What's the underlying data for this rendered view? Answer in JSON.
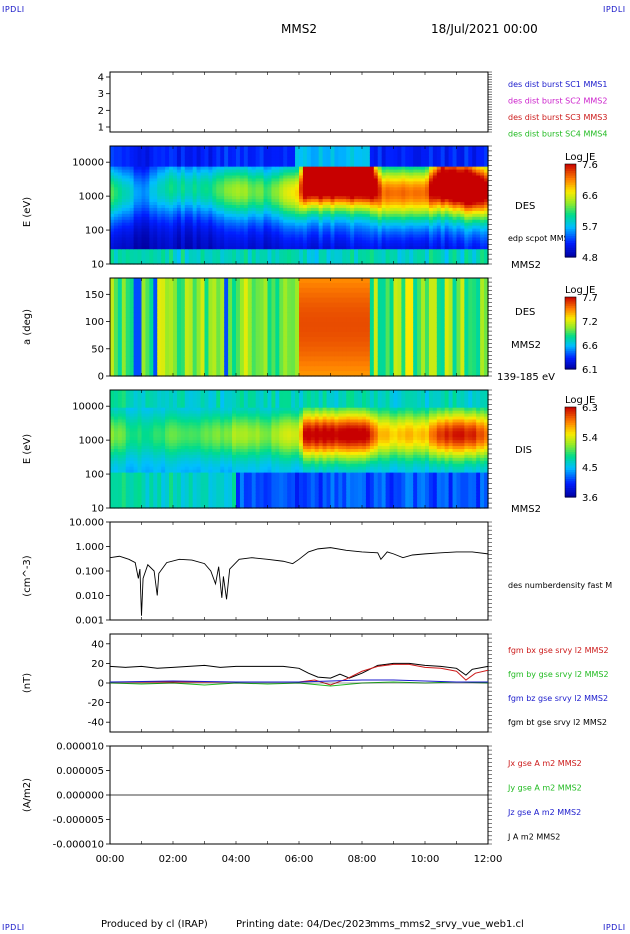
{
  "header": {
    "title": "MMS2",
    "date": "18/Jul/2021 00:00",
    "corner_left_top": "IPDLI",
    "corner_right_top": "IPDLI",
    "corner_left_bottom": "IPDLI",
    "corner_right_bottom": "IPDLI"
  },
  "footer": {
    "produced": "Produced by cl (IRAP)",
    "printing": "Printing date: 04/Dec/2023",
    "file": "mms_mms2_srvy_vue_web1.cl"
  },
  "chart_data": {
    "type": "stacked-timeseries",
    "x_ticks": [
      "00:00",
      "02:00",
      "04:00",
      "06:00",
      "08:00",
      "10:00",
      "12:00"
    ],
    "x_range_hours": [
      0,
      12
    ],
    "panels": [
      {
        "id": "burst",
        "type": "line",
        "y_ticks": [
          "1",
          "2",
          "3",
          "4"
        ],
        "ylim": [
          0.7,
          4.3
        ],
        "legend": [
          {
            "label": "des dist burst SC1 MMS1",
            "color": "#1a1acc"
          },
          {
            "label": "des dist burst SC2 MMS2",
            "color": "#cc22cc"
          },
          {
            "label": "des dist burst SC3 MMS3",
            "color": "#cc1a1a"
          },
          {
            "label": "des dist burst SC4 MMS4",
            "color": "#22bb22"
          }
        ]
      },
      {
        "id": "des-energy",
        "type": "heatmap",
        "ylabel": "E (eV)",
        "y_ticks": [
          "10",
          "100",
          "1000",
          "10000"
        ],
        "ylim_log": [
          10,
          30000
        ],
        "side_labels": [
          "DES",
          "edp scpot MMS2",
          "MMS2"
        ],
        "colorbar": {
          "title": "Log JE",
          "ticks": [
            "7.6",
            "6.6",
            "5.7",
            "4.8"
          ],
          "range": [
            4.8,
            7.6
          ]
        }
      },
      {
        "id": "des-pitch",
        "type": "heatmap",
        "ylabel": "a (deg)",
        "y_ticks": [
          "0",
          "50",
          "100",
          "150"
        ],
        "ylim": [
          0,
          180
        ],
        "side_labels": [
          "DES",
          "MMS2",
          "139-185 eV"
        ],
        "colorbar": {
          "title": "Log JE",
          "ticks": [
            "7.7",
            "7.2",
            "6.6",
            "6.1"
          ],
          "range": [
            6.1,
            7.7
          ]
        }
      },
      {
        "id": "dis-energy",
        "type": "heatmap",
        "ylabel": "E (eV)",
        "y_ticks": [
          "10",
          "100",
          "1000",
          "10000"
        ],
        "ylim_log": [
          10,
          30000
        ],
        "side_labels": [
          "DIS",
          "MMS2"
        ],
        "colorbar": {
          "title": "Log JE",
          "ticks": [
            "6.3",
            "5.4",
            "4.5",
            "3.6"
          ],
          "range": [
            3.6,
            6.3
          ]
        }
      },
      {
        "id": "density",
        "type": "line",
        "ylabel": "(cm^-3)",
        "y_ticks": [
          "0.001",
          "0.010",
          "0.100",
          "1.000",
          "10.000"
        ],
        "ylim_log": [
          0.001,
          10
        ],
        "legend": [
          {
            "label": "des numberdensity fast M",
            "color": "#000000"
          }
        ],
        "series_points": [
          [
            0.0,
            0.35
          ],
          [
            0.3,
            0.4
          ],
          [
            0.6,
            0.3
          ],
          [
            0.8,
            0.22
          ],
          [
            0.9,
            0.05
          ],
          [
            0.95,
            0.12
          ],
          [
            1.0,
            0.0015
          ],
          [
            1.05,
            0.05
          ],
          [
            1.2,
            0.18
          ],
          [
            1.4,
            0.1
          ],
          [
            1.5,
            0.01
          ],
          [
            1.55,
            0.08
          ],
          [
            1.8,
            0.22
          ],
          [
            2.2,
            0.3
          ],
          [
            2.6,
            0.28
          ],
          [
            3.0,
            0.2
          ],
          [
            3.2,
            0.1
          ],
          [
            3.35,
            0.03
          ],
          [
            3.45,
            0.15
          ],
          [
            3.55,
            0.008
          ],
          [
            3.6,
            0.06
          ],
          [
            3.7,
            0.007
          ],
          [
            3.8,
            0.12
          ],
          [
            4.1,
            0.3
          ],
          [
            4.5,
            0.35
          ],
          [
            5.0,
            0.3
          ],
          [
            5.5,
            0.25
          ],
          [
            5.8,
            0.2
          ],
          [
            6.0,
            0.3
          ],
          [
            6.3,
            0.6
          ],
          [
            6.6,
            0.8
          ],
          [
            7.0,
            0.9
          ],
          [
            7.5,
            0.7
          ],
          [
            8.0,
            0.6
          ],
          [
            8.5,
            0.55
          ],
          [
            8.6,
            0.3
          ],
          [
            8.8,
            0.6
          ],
          [
            9.0,
            0.5
          ],
          [
            9.3,
            0.35
          ],
          [
            9.6,
            0.45
          ],
          [
            10.0,
            0.5
          ],
          [
            10.5,
            0.55
          ],
          [
            11.0,
            0.6
          ],
          [
            11.5,
            0.6
          ],
          [
            12.0,
            0.5
          ]
        ]
      },
      {
        "id": "fgm",
        "type": "line",
        "ylabel": "(nT)",
        "y_ticks": [
          "-40",
          "-20",
          "0",
          "20",
          "40"
        ],
        "ylim": [
          -50,
          50
        ],
        "legend": [
          {
            "label": "fgm bx gse srvy l2 MMS2",
            "color": "#cc1a1a"
          },
          {
            "label": "fgm by gse srvy l2 MMS2",
            "color": "#22bb22"
          },
          {
            "label": "fgm bz gse srvy l2 MMS2",
            "color": "#1a1acc"
          },
          {
            "label": "fgm bt gse srvy l2 MMS2",
            "color": "#000000"
          }
        ],
        "series": [
          {
            "name": "bt",
            "color": "#000000",
            "points": [
              [
                0,
                17
              ],
              [
                0.5,
                16
              ],
              [
                1,
                17
              ],
              [
                1.5,
                15
              ],
              [
                2,
                16
              ],
              [
                2.5,
                17
              ],
              [
                3,
                18
              ],
              [
                3.5,
                16
              ],
              [
                4,
                17
              ],
              [
                4.5,
                17
              ],
              [
                5,
                17
              ],
              [
                5.5,
                17
              ],
              [
                6,
                15
              ],
              [
                6.3,
                10
              ],
              [
                6.6,
                6
              ],
              [
                7,
                5
              ],
              [
                7.3,
                9
              ],
              [
                7.6,
                5
              ],
              [
                8,
                10
              ],
              [
                8.5,
                18
              ],
              [
                9,
                20
              ],
              [
                9.5,
                20
              ],
              [
                10,
                18
              ],
              [
                10.5,
                17
              ],
              [
                11,
                15
              ],
              [
                11.3,
                8
              ],
              [
                11.5,
                14
              ],
              [
                12,
                17
              ]
            ]
          },
          {
            "name": "bx",
            "color": "#cc1a1a",
            "points": [
              [
                0,
                1
              ],
              [
                6,
                1
              ],
              [
                6.5,
                3
              ],
              [
                7,
                -2
              ],
              [
                7.5,
                4
              ],
              [
                8,
                12
              ],
              [
                8.5,
                17
              ],
              [
                9,
                19
              ],
              [
                9.5,
                19
              ],
              [
                10,
                16
              ],
              [
                10.5,
                15
              ],
              [
                11,
                12
              ],
              [
                11.3,
                3
              ],
              [
                11.6,
                10
              ],
              [
                12,
                13
              ]
            ]
          },
          {
            "name": "by",
            "color": "#22bb22",
            "points": [
              [
                0,
                0
              ],
              [
                1,
                -1
              ],
              [
                2,
                0
              ],
              [
                3,
                -2
              ],
              [
                4,
                0
              ],
              [
                5,
                -1
              ],
              [
                6,
                0
              ],
              [
                7,
                -3
              ],
              [
                8,
                0
              ],
              [
                9,
                1
              ],
              [
                10,
                0
              ],
              [
                11,
                1
              ],
              [
                12,
                0
              ]
            ]
          },
          {
            "name": "bz",
            "color": "#1a1acc",
            "points": [
              [
                0,
                1
              ],
              [
                2,
                2
              ],
              [
                4,
                1
              ],
              [
                6,
                1
              ],
              [
                7,
                2
              ],
              [
                8,
                3
              ],
              [
                9,
                3
              ],
              [
                10,
                2
              ],
              [
                11,
                1
              ],
              [
                12,
                1
              ]
            ]
          }
        ]
      },
      {
        "id": "current",
        "type": "line",
        "ylabel": "(A/m2)",
        "y_ticks": [
          "-0.000010",
          "-0.000005",
          "0.000000",
          "0.000005",
          "0.000010"
        ],
        "ylim": [
          -1e-05,
          1e-05
        ],
        "legend": [
          {
            "label": "Jx gse A m2 MMS2",
            "color": "#cc1a1a"
          },
          {
            "label": "Jy gse A m2 MMS2",
            "color": "#22bb22"
          },
          {
            "label": "Jz gse A m2 MMS2",
            "color": "#1a1acc"
          },
          {
            "label": "J A m2 MMS2",
            "color": "#000000"
          }
        ]
      }
    ]
  }
}
